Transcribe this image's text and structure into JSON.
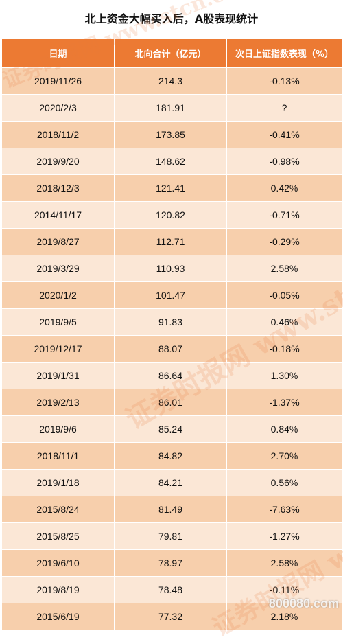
{
  "title": "北上资金大幅买入后，A股表现统计",
  "headers": [
    "日期",
    "北向合计（亿元）",
    "次日上证指数表现（%）"
  ],
  "rows": [
    [
      "2019/11/26",
      "214.3",
      "-0.13%"
    ],
    [
      "2020/2/3",
      "181.91",
      "?"
    ],
    [
      "2018/11/2",
      "173.85",
      "-0.41%"
    ],
    [
      "2019/9/20",
      "148.62",
      "-0.98%"
    ],
    [
      "2018/12/3",
      "121.41",
      "0.42%"
    ],
    [
      "2014/11/17",
      "120.82",
      "-0.71%"
    ],
    [
      "2019/8/27",
      "112.71",
      "-0.29%"
    ],
    [
      "2019/3/29",
      "110.93",
      "2.58%"
    ],
    [
      "2020/1/2",
      "101.47",
      "-0.05%"
    ],
    [
      "2019/9/5",
      "91.83",
      "0.46%"
    ],
    [
      "2019/12/17",
      "88.07",
      "-0.18%"
    ],
    [
      "2019/1/31",
      "86.64",
      "1.30%"
    ],
    [
      "2019/2/13",
      "86.01",
      "-1.37%"
    ],
    [
      "2019/9/6",
      "85.24",
      "0.84%"
    ],
    [
      "2018/11/1",
      "84.82",
      "2.70%"
    ],
    [
      "2019/1/18",
      "84.21",
      "0.56%"
    ],
    [
      "2015/8/24",
      "81.49",
      "-7.63%"
    ],
    [
      "2015/8/25",
      "79.81",
      "-1.27%"
    ],
    [
      "2019/6/10",
      "78.97",
      "2.58%"
    ],
    [
      "2019/8/19",
      "78.48",
      "-0.11%"
    ],
    [
      "2015/6/19",
      "77.32",
      "2.18%"
    ]
  ],
  "watermark": {
    "top": "证券时报网 www.stcn.com",
    "middle": "证券时报网 www.stcn.com",
    "bottom": "证券时报网 www.stcn.com",
    "corner": "800080.com"
  }
}
